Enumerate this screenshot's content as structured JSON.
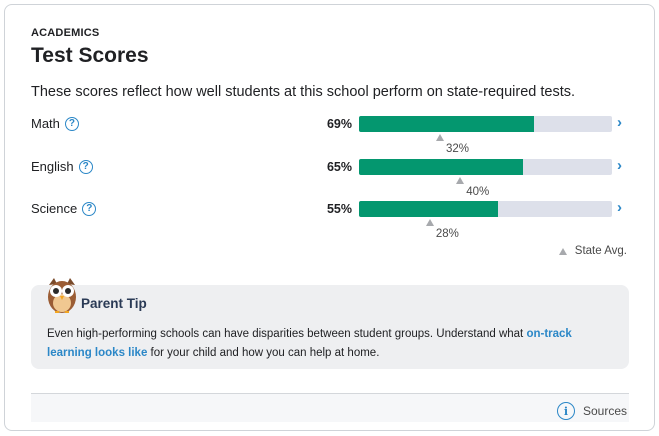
{
  "header": {
    "eyebrow": "ACADEMICS",
    "title": "Test Scores",
    "description": "These scores reflect how well students at this school perform on state-required tests."
  },
  "scores": [
    {
      "subject": "Math",
      "help": "?",
      "percent_label": "69%",
      "value": 69,
      "state_avg": 32,
      "state_avg_label": "32%"
    },
    {
      "subject": "English",
      "help": "?",
      "percent_label": "65%",
      "value": 65,
      "state_avg": 40,
      "state_avg_label": "40%"
    },
    {
      "subject": "Science",
      "help": "?",
      "percent_label": "55%",
      "value": 55,
      "state_avg": 28,
      "state_avg_label": "28%"
    }
  ],
  "legend": {
    "label": "State Avg."
  },
  "tip": {
    "title": "Parent Tip",
    "text_before": "Even high-performing schools can have disparities between student groups. Understand what ",
    "link": "on-track learning looks like",
    "text_after": " for your child and how you can help at home."
  },
  "footer": {
    "sources_label": "Sources",
    "info_glyph": "i"
  },
  "colors": {
    "bar_fill": "#04976f",
    "bar_track": "#dde0ea",
    "accent": "#2b87c7",
    "state_marker": "#a7a9ad"
  },
  "icons": {
    "chevron": "chevron-right-icon",
    "owl": "owl-icon",
    "help": "help-icon",
    "info": "info-icon"
  }
}
